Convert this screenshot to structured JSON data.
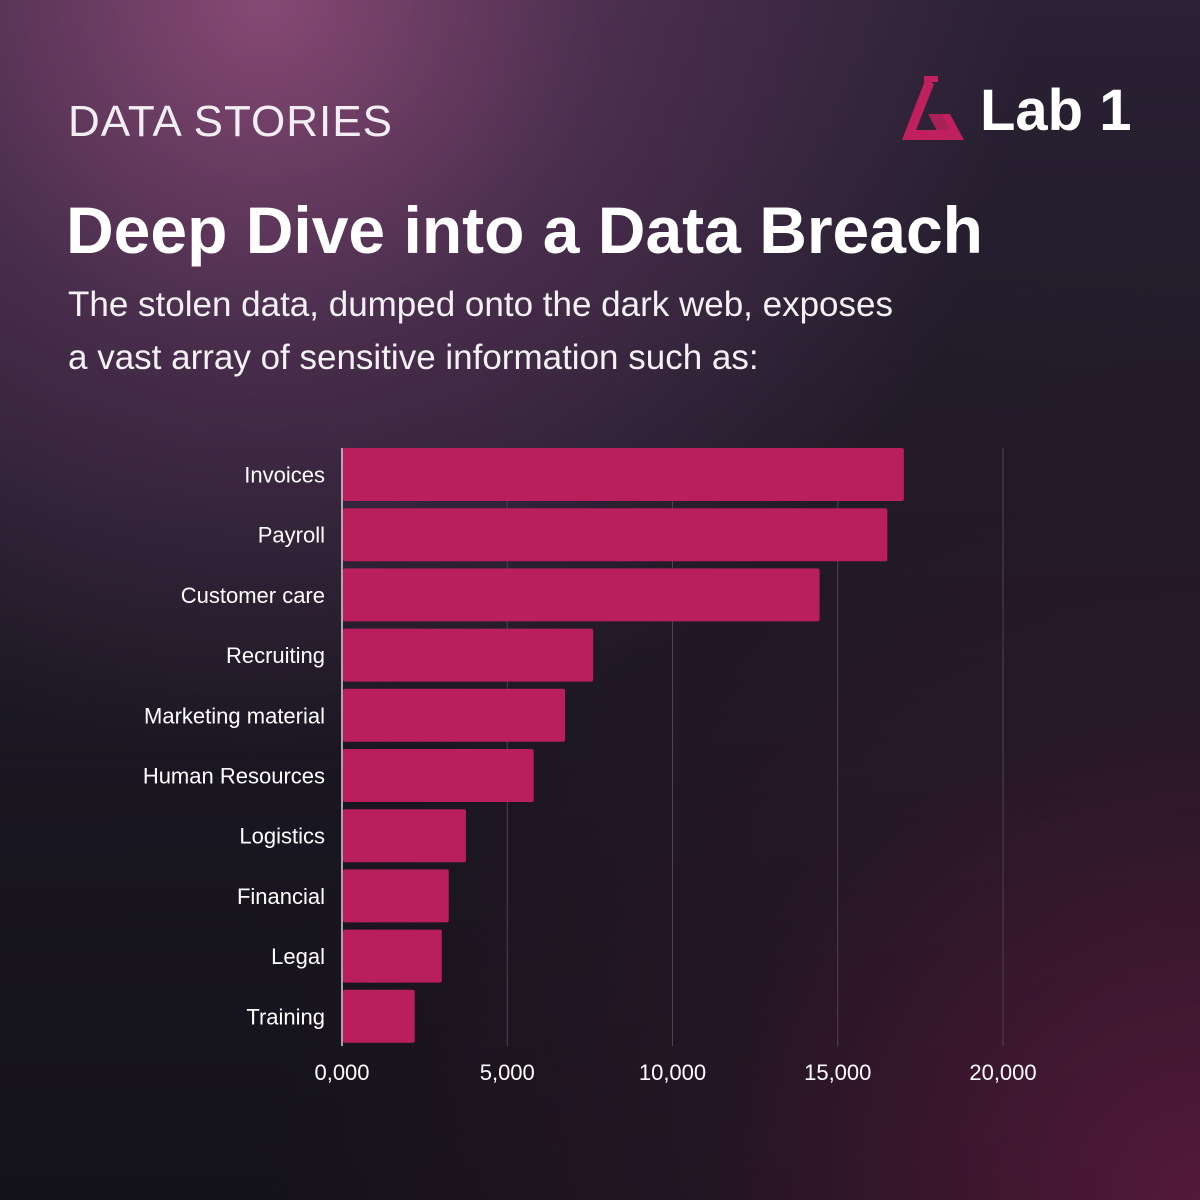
{
  "header": {
    "kicker": "DATA STORIES",
    "title": "Deep Dive into a Data Breach",
    "subtitle_line1": "The stolen data, dumped onto the dark web, exposes",
    "subtitle_line2": "a vast array of sensitive information such as:"
  },
  "logo": {
    "text": "Lab 1",
    "icon": "lab-flask-triangle-icon"
  },
  "colors": {
    "bar": "#b91f5c",
    "logo_accent": "#c0215e",
    "grid": "#4a4552",
    "axis": "#d8d4dc"
  },
  "chart_data": {
    "type": "bar",
    "orientation": "horizontal",
    "categories": [
      "Invoices",
      "Payroll",
      "Customer care",
      "Recruiting",
      "Marketing material",
      "Human Resources",
      "Logistics",
      "Financial",
      "Legal",
      "Training"
    ],
    "values": [
      17000,
      16500,
      14450,
      7600,
      6750,
      5800,
      3750,
      3230,
      3020,
      2200
    ],
    "xlim": [
      0,
      20000
    ],
    "xticks": [
      0,
      5000,
      10000,
      15000,
      20000
    ],
    "xtick_labels": [
      "0,000",
      "5,000",
      "10,000",
      "15,000",
      "20,000"
    ],
    "grid": "vertical",
    "legend": "none"
  }
}
